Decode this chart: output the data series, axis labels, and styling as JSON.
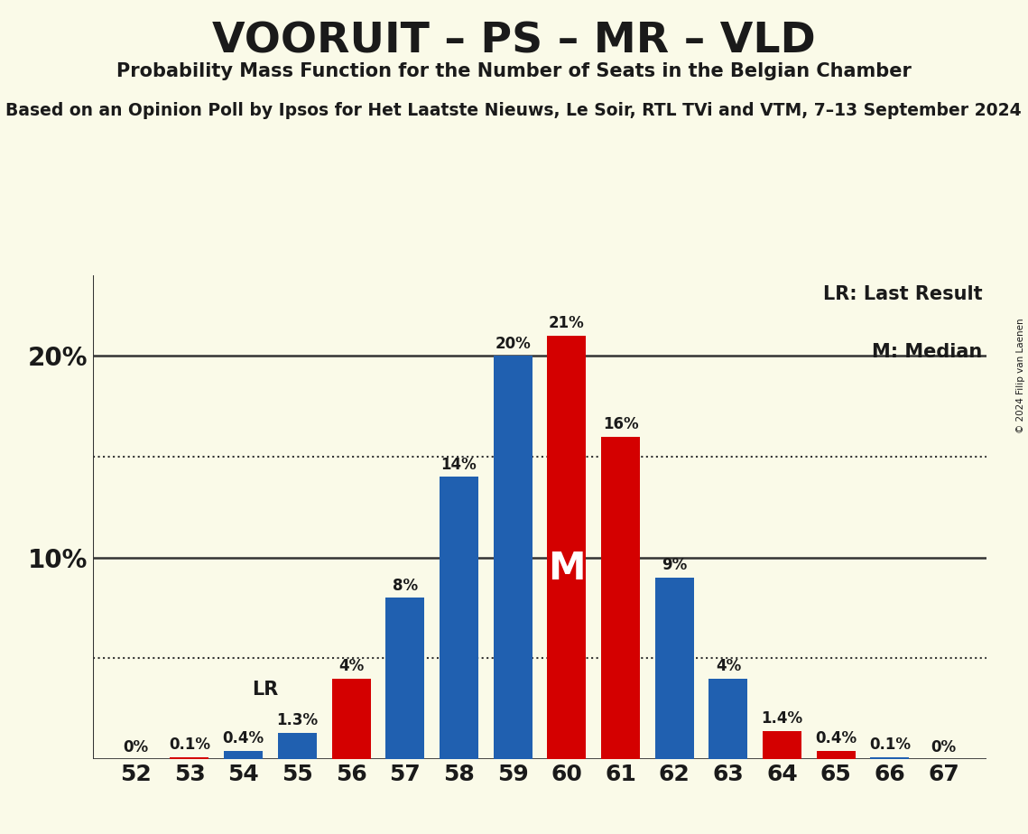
{
  "title": "VOORUIT – PS – MR – VLD",
  "subtitle1": "Probability Mass Function for the Number of Seats in the Belgian Chamber",
  "subtitle2": "Based on an Opinion Poll by Ipsos for Het Laatste Nieuws, Le Soir, RTL TVi and VTM, 7–13 September 2024",
  "copyright": "© 2024 Filip van Laenen",
  "seats": [
    52,
    53,
    54,
    55,
    56,
    57,
    58,
    59,
    60,
    61,
    62,
    63,
    64,
    65,
    66,
    67
  ],
  "probabilities": [
    0.0,
    0.1,
    0.4,
    1.3,
    4.0,
    8.0,
    14.0,
    20.0,
    21.0,
    16.0,
    9.0,
    4.0,
    1.4,
    0.4,
    0.1,
    0.0
  ],
  "labels": [
    "0%",
    "0.1%",
    "0.4%",
    "1.3%",
    "4%",
    "8%",
    "14%",
    "20%",
    "21%",
    "16%",
    "9%",
    "4%",
    "1.4%",
    "0.4%",
    "0.1%",
    "0%"
  ],
  "show_label": [
    true,
    true,
    true,
    true,
    true,
    true,
    true,
    true,
    true,
    true,
    true,
    true,
    true,
    true,
    true,
    true
  ],
  "colors": [
    "#d40000",
    "#d40000",
    "#2060b0",
    "#2060b0",
    "#d40000",
    "#2060b0",
    "#2060b0",
    "#2060b0",
    "#d40000",
    "#d40000",
    "#2060b0",
    "#2060b0",
    "#d40000",
    "#d40000",
    "#2060b0",
    "#2060b0"
  ],
  "last_result_seat": 55,
  "median_seat": 60,
  "median_label": "M",
  "lr_label": "LR",
  "background_color": "#fafae8",
  "bar_blue": "#2060b0",
  "bar_red": "#d40000",
  "text_color": "#1a1a1a",
  "ylim": [
    0,
    24
  ],
  "dotted_lines": [
    5.0,
    15.0
  ],
  "solid_lines": [
    10.0,
    20.0
  ],
  "legend_lr": "LR: Last Result",
  "legend_m": "M: Median"
}
